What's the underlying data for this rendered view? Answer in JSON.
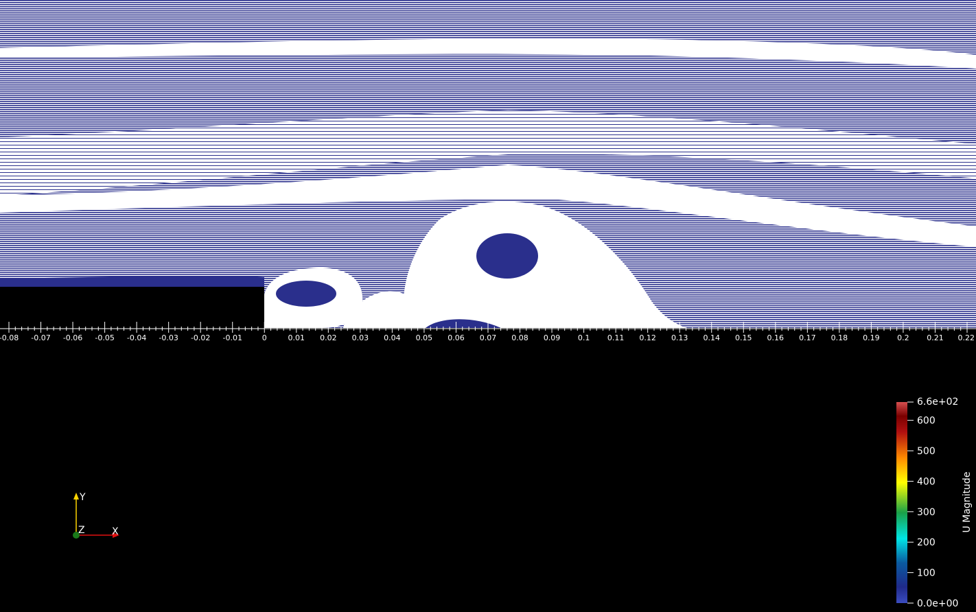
{
  "scene": {
    "background": "#000000",
    "streamline_color": "#2a2f8c",
    "flow_background": "#ffffff"
  },
  "x_axis": {
    "min": -0.08,
    "max": 0.22,
    "step": 0.01,
    "ticks": [
      "-0.08",
      "-0.07",
      "-0.06",
      "-0.05",
      "-0.04",
      "-0.03",
      "-0.02",
      "-0.01",
      "0",
      "0.01",
      "0.02",
      "0.03",
      "0.04",
      "0.05",
      "0.06",
      "0.07",
      "0.08",
      "0.09",
      "0.1",
      "0.11",
      "0.12",
      "0.13",
      "0.14",
      "0.15",
      "0.16",
      "0.17",
      "0.18",
      "0.19",
      "0.2",
      "0.21",
      "0.22"
    ]
  },
  "colorbar": {
    "title": "U Magnitude",
    "min": 0,
    "max": 660,
    "max_label": "6.6e+02",
    "min_label": "0.0e+00",
    "labels": [
      "600",
      "500",
      "400",
      "300",
      "200",
      "100"
    ],
    "label_values": [
      600,
      500,
      400,
      300,
      200,
      100
    ],
    "colors": [
      "#3b4cc0",
      "#1f2a8a",
      "#00e5e5",
      "#1aa048",
      "#ffff00",
      "#ff8c00",
      "#b01010",
      "#d65050"
    ]
  },
  "orientation": {
    "y_label": "Y",
    "z_label": "Z",
    "x_label": "X",
    "y_color": "#ffd400",
    "z_color": "#1a7a1a",
    "x_color": "#e01010"
  }
}
